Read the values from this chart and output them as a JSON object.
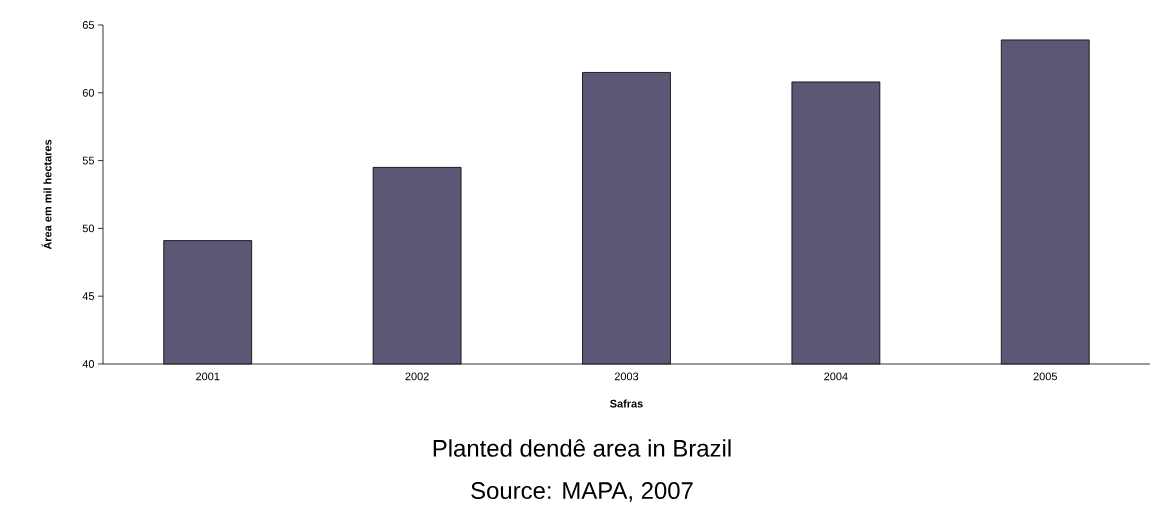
{
  "chart_data": {
    "type": "bar",
    "title": "Planted dendê area in Brazil",
    "xlabel": "Safras",
    "ylabel": "Área em mil hectares",
    "annotations": [
      "Source: MAPA, 2007"
    ],
    "categories": [
      "2001",
      "2002",
      "2003",
      "2004",
      "2005"
    ],
    "values": [
      49.1,
      54.5,
      61.5,
      60.8,
      63.9
    ],
    "color": "#5d5675",
    "ylim": [
      40,
      65
    ],
    "yticks": [
      40,
      45,
      50,
      55,
      60,
      65
    ],
    "grid": false
  }
}
